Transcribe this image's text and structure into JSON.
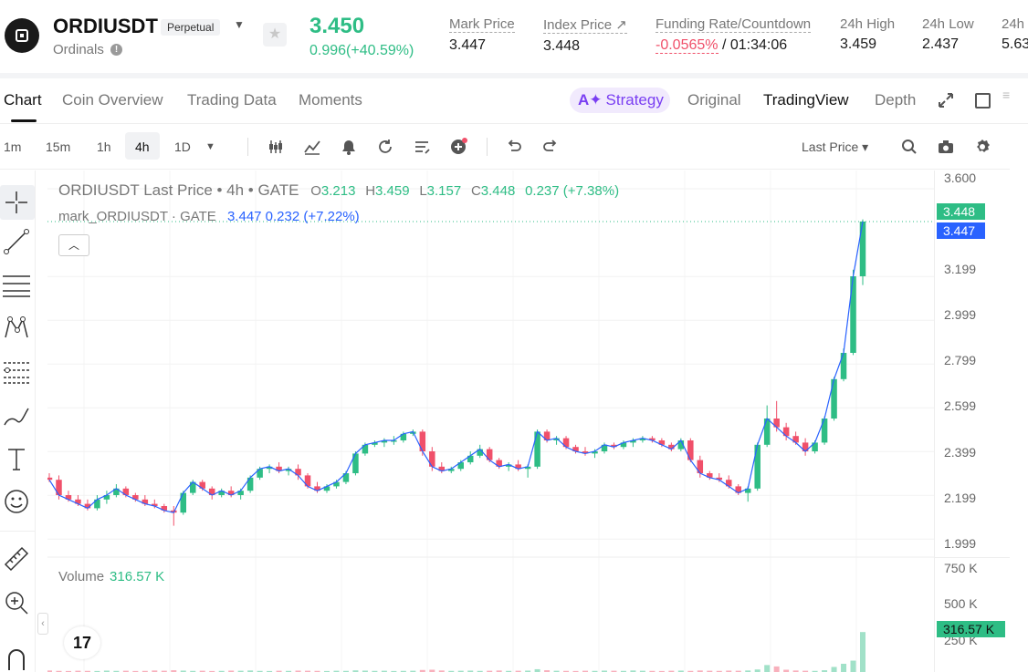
{
  "header": {
    "symbol": "ORDIUSDT",
    "contract_type": "Perpetual",
    "subname": "Ordinals",
    "last_price": "3.450",
    "change": "0.996(+40.59%)",
    "stats": {
      "mark_price": {
        "label": "Mark Price",
        "value": "3.447"
      },
      "index_price": {
        "label": "Index Price ↗",
        "value": "3.448"
      },
      "funding": {
        "label": "Funding Rate/Countdown",
        "rate": "-0.0565%",
        "countdown": "/ 01:34:06"
      },
      "high_24h": {
        "label": "24h High",
        "value": "3.459"
      },
      "low_24h": {
        "label": "24h Low",
        "value": "2.437"
      },
      "volume_24h": {
        "label": "24h",
        "value": "5.63"
      }
    }
  },
  "tabs": [
    "Chart",
    "Coin Overview",
    "Trading Data",
    "Moments"
  ],
  "view_tabs": {
    "strategy": "Strategy",
    "original": "Original",
    "tradingview": "TradingView",
    "depth": "Depth"
  },
  "toolbar": {
    "timeframes": [
      "1m",
      "15m",
      "1h",
      "4h",
      "1D"
    ],
    "active_timeframe": "4h",
    "price_type": "Last Price ▾"
  },
  "legend": {
    "title": "ORDIUSDT Last Price • 4h • GATE",
    "open_k": "O",
    "open": "3.213",
    "high_k": "H",
    "high": "3.459",
    "low_k": "L",
    "low": "3.157",
    "close_k": "C",
    "close": "3.448",
    "change": "0.237 (+7.38%)",
    "mark_name": "mark_ORDIUSDT · GATE",
    "mark_value": "3.447 0.232 (+7.22%)",
    "volume_label": "Volume",
    "volume_value": "316.57 K"
  },
  "price_scale": {
    "ticks": [
      "3.600",
      "3.199",
      "2.999",
      "2.799",
      "2.599",
      "2.399",
      "2.199",
      "1.999"
    ],
    "last_badge": "3.448",
    "mark_badge": "3.447",
    "volume_ticks": [
      "750 K",
      "500 K",
      "250 K"
    ],
    "volume_badge": "316.57 K"
  },
  "colors": {
    "up": "#2ebd85",
    "down": "#f0506a",
    "mark_line": "#2962ff",
    "accent_purple": "#7a3ff2"
  },
  "icons": [
    "logo-icon",
    "info-icon",
    "star-icon",
    "chevron-down-icon",
    "expand-icon",
    "window-icon",
    "candle-type-icon",
    "indicators-icon",
    "alert-icon",
    "replay-icon",
    "template-icon",
    "add-indicator-icon",
    "undo-icon",
    "redo-icon",
    "search-icon",
    "camera-icon",
    "settings-icon",
    "crosshair-icon",
    "trendline-icon",
    "horizontal-lines-icon",
    "pattern-icon",
    "fib-icon",
    "brush-icon",
    "text-icon",
    "emoji-icon",
    "ruler-icon",
    "zoom-icon",
    "magnet-icon"
  ],
  "chart_data": {
    "type": "candlestick",
    "interval": "4h",
    "ylim": [
      1.95,
      3.65
    ],
    "candles": [
      [
        2.28,
        2.3,
        2.26,
        2.27
      ],
      [
        2.27,
        2.29,
        2.18,
        2.2
      ],
      [
        2.2,
        2.22,
        2.17,
        2.18
      ],
      [
        2.18,
        2.2,
        2.15,
        2.16
      ],
      [
        2.16,
        2.18,
        2.13,
        2.14
      ],
      [
        2.14,
        2.2,
        2.13,
        2.18
      ],
      [
        2.18,
        2.22,
        2.16,
        2.2
      ],
      [
        2.2,
        2.25,
        2.19,
        2.23
      ],
      [
        2.23,
        2.24,
        2.19,
        2.2
      ],
      [
        2.2,
        2.21,
        2.17,
        2.18
      ],
      [
        2.18,
        2.2,
        2.15,
        2.16
      ],
      [
        2.16,
        2.18,
        2.14,
        2.15
      ],
      [
        2.15,
        2.16,
        2.12,
        2.13
      ],
      [
        2.13,
        2.15,
        2.06,
        2.12
      ],
      [
        2.12,
        2.22,
        2.11,
        2.21
      ],
      [
        2.21,
        2.27,
        2.2,
        2.26
      ],
      [
        2.26,
        2.27,
        2.22,
        2.23
      ],
      [
        2.23,
        2.24,
        2.18,
        2.2
      ],
      [
        2.2,
        2.23,
        2.19,
        2.22
      ],
      [
        2.22,
        2.24,
        2.19,
        2.2
      ],
      [
        2.2,
        2.23,
        2.18,
        2.22
      ],
      [
        2.22,
        2.29,
        2.21,
        2.28
      ],
      [
        2.28,
        2.33,
        2.27,
        2.32
      ],
      [
        2.32,
        2.34,
        2.3,
        2.33
      ],
      [
        2.33,
        2.35,
        2.3,
        2.31
      ],
      [
        2.31,
        2.33,
        2.29,
        2.32
      ],
      [
        2.32,
        2.34,
        2.27,
        2.29
      ],
      [
        2.29,
        2.3,
        2.23,
        2.24
      ],
      [
        2.24,
        2.26,
        2.21,
        2.22
      ],
      [
        2.22,
        2.25,
        2.21,
        2.24
      ],
      [
        2.24,
        2.27,
        2.23,
        2.26
      ],
      [
        2.26,
        2.31,
        2.25,
        2.3
      ],
      [
        2.3,
        2.4,
        2.29,
        2.39
      ],
      [
        2.39,
        2.44,
        2.38,
        2.43
      ],
      [
        2.43,
        2.45,
        2.42,
        2.44
      ],
      [
        2.44,
        2.46,
        2.42,
        2.45
      ],
      [
        2.45,
        2.47,
        2.43,
        2.45
      ],
      [
        2.45,
        2.49,
        2.44,
        2.48
      ],
      [
        2.48,
        2.5,
        2.47,
        2.49
      ],
      [
        2.49,
        2.5,
        2.38,
        2.4
      ],
      [
        2.4,
        2.42,
        2.31,
        2.33
      ],
      [
        2.33,
        2.35,
        2.3,
        2.31
      ],
      [
        2.31,
        2.33,
        2.3,
        2.32
      ],
      [
        2.32,
        2.36,
        2.31,
        2.35
      ],
      [
        2.35,
        2.4,
        2.34,
        2.38
      ],
      [
        2.38,
        2.43,
        2.37,
        2.41
      ],
      [
        2.41,
        2.42,
        2.35,
        2.36
      ],
      [
        2.36,
        2.37,
        2.32,
        2.33
      ],
      [
        2.33,
        2.35,
        2.31,
        2.34
      ],
      [
        2.34,
        2.36,
        2.31,
        2.32
      ],
      [
        2.32,
        2.34,
        2.28,
        2.33
      ],
      [
        2.33,
        2.5,
        2.32,
        2.49
      ],
      [
        2.49,
        2.5,
        2.44,
        2.45
      ],
      [
        2.45,
        2.47,
        2.43,
        2.46
      ],
      [
        2.46,
        2.47,
        2.41,
        2.42
      ],
      [
        2.42,
        2.43,
        2.39,
        2.4
      ],
      [
        2.4,
        2.42,
        2.38,
        2.39
      ],
      [
        2.39,
        2.41,
        2.37,
        2.4
      ],
      [
        2.4,
        2.44,
        2.39,
        2.43
      ],
      [
        2.43,
        2.44,
        2.41,
        2.42
      ],
      [
        2.42,
        2.45,
        2.41,
        2.44
      ],
      [
        2.44,
        2.46,
        2.42,
        2.45
      ],
      [
        2.45,
        2.47,
        2.44,
        2.46
      ],
      [
        2.46,
        2.47,
        2.44,
        2.45
      ],
      [
        2.45,
        2.46,
        2.42,
        2.43
      ],
      [
        2.43,
        2.44,
        2.4,
        2.41
      ],
      [
        2.41,
        2.46,
        2.4,
        2.45
      ],
      [
        2.45,
        2.46,
        2.35,
        2.36
      ],
      [
        2.36,
        2.38,
        2.28,
        2.3
      ],
      [
        2.3,
        2.31,
        2.27,
        2.28
      ],
      [
        2.28,
        2.3,
        2.26,
        2.27
      ],
      [
        2.27,
        2.29,
        2.23,
        2.24
      ],
      [
        2.24,
        2.25,
        2.2,
        2.21
      ],
      [
        2.21,
        2.24,
        2.17,
        2.23
      ],
      [
        2.23,
        2.44,
        2.22,
        2.43
      ],
      [
        2.43,
        2.61,
        2.42,
        2.55
      ],
      [
        2.55,
        2.63,
        2.49,
        2.51
      ],
      [
        2.51,
        2.53,
        2.45,
        2.47
      ],
      [
        2.47,
        2.49,
        2.43,
        2.44
      ],
      [
        2.44,
        2.46,
        2.38,
        2.4
      ],
      [
        2.4,
        2.45,
        2.39,
        2.44
      ],
      [
        2.44,
        2.56,
        2.43,
        2.55
      ],
      [
        2.55,
        2.74,
        2.54,
        2.73
      ],
      [
        2.73,
        2.87,
        2.72,
        2.85
      ],
      [
        2.85,
        3.23,
        2.84,
        3.2
      ],
      [
        3.2,
        3.46,
        3.16,
        3.45
      ]
    ],
    "volume": [
      12,
      9,
      8,
      10,
      9,
      8,
      11,
      9,
      10,
      8,
      9,
      12,
      10,
      14,
      11,
      9,
      10,
      8,
      9,
      11,
      10,
      12,
      9,
      8,
      10,
      9,
      11,
      10,
      9,
      8,
      10,
      9,
      13,
      11,
      9,
      10,
      8,
      9,
      10,
      16,
      18,
      12,
      9,
      10,
      11,
      9,
      10,
      12,
      9,
      10,
      11,
      22,
      14,
      10,
      9,
      8,
      10,
      9,
      11,
      10,
      9,
      12,
      10,
      9,
      8,
      10,
      11,
      9,
      12,
      10,
      9,
      11,
      10,
      12,
      20,
      55,
      44,
      18,
      12,
      10,
      9,
      14,
      40,
      65,
      90,
      316
    ]
  }
}
